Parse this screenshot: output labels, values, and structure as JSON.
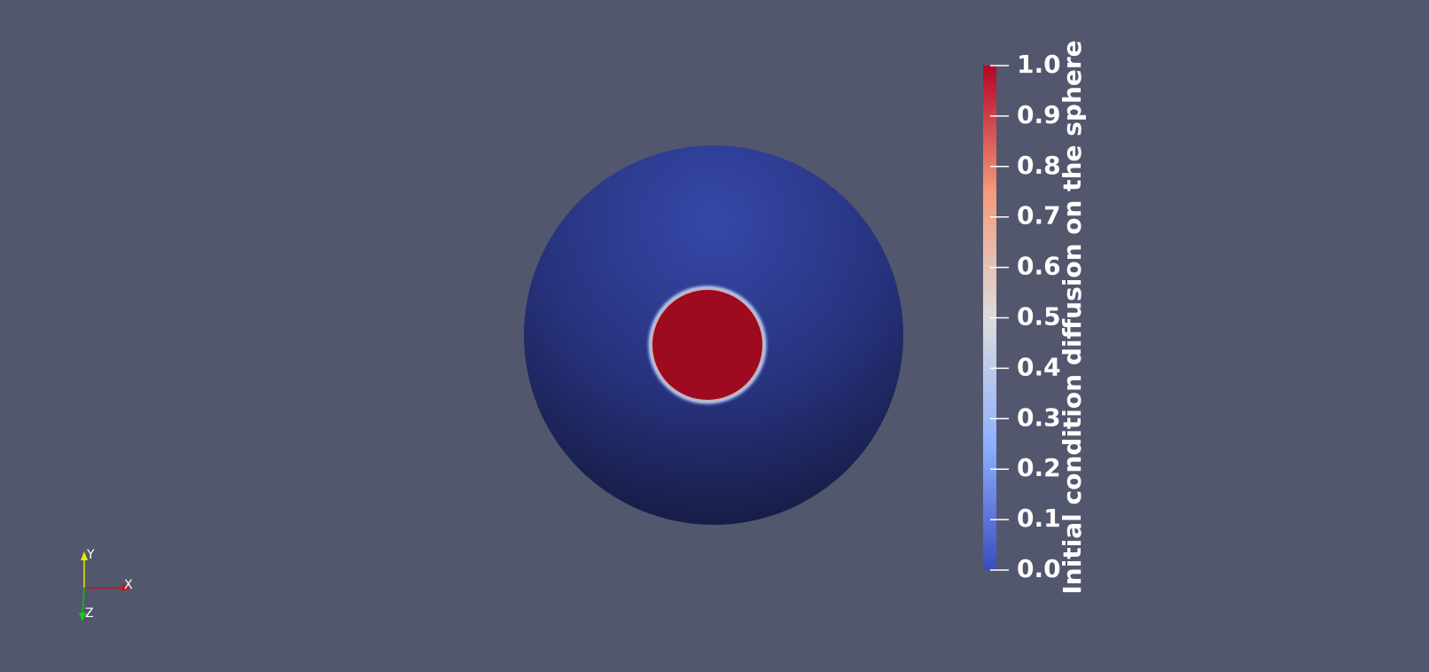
{
  "colorbar": {
    "title": "Initial condition diffusion on the sphere",
    "ticks": [
      {
        "value": 0,
        "label": "0.0"
      },
      {
        "value": 0.1,
        "label": "0.1"
      },
      {
        "value": 0.2,
        "label": "0.2"
      },
      {
        "value": 0.3,
        "label": "0.3"
      },
      {
        "value": 0.4,
        "label": "0.4"
      },
      {
        "value": 0.5,
        "label": "0.5"
      },
      {
        "value": 0.6,
        "label": "0.6"
      },
      {
        "value": 0.7,
        "label": "0.7"
      },
      {
        "value": 0.8,
        "label": "0.8"
      },
      {
        "value": 0.9,
        "label": "0.9"
      },
      {
        "value": 1,
        "label": "1.0"
      }
    ]
  },
  "axes_triad": {
    "x": "X",
    "y": "Y",
    "z": "Z"
  }
}
